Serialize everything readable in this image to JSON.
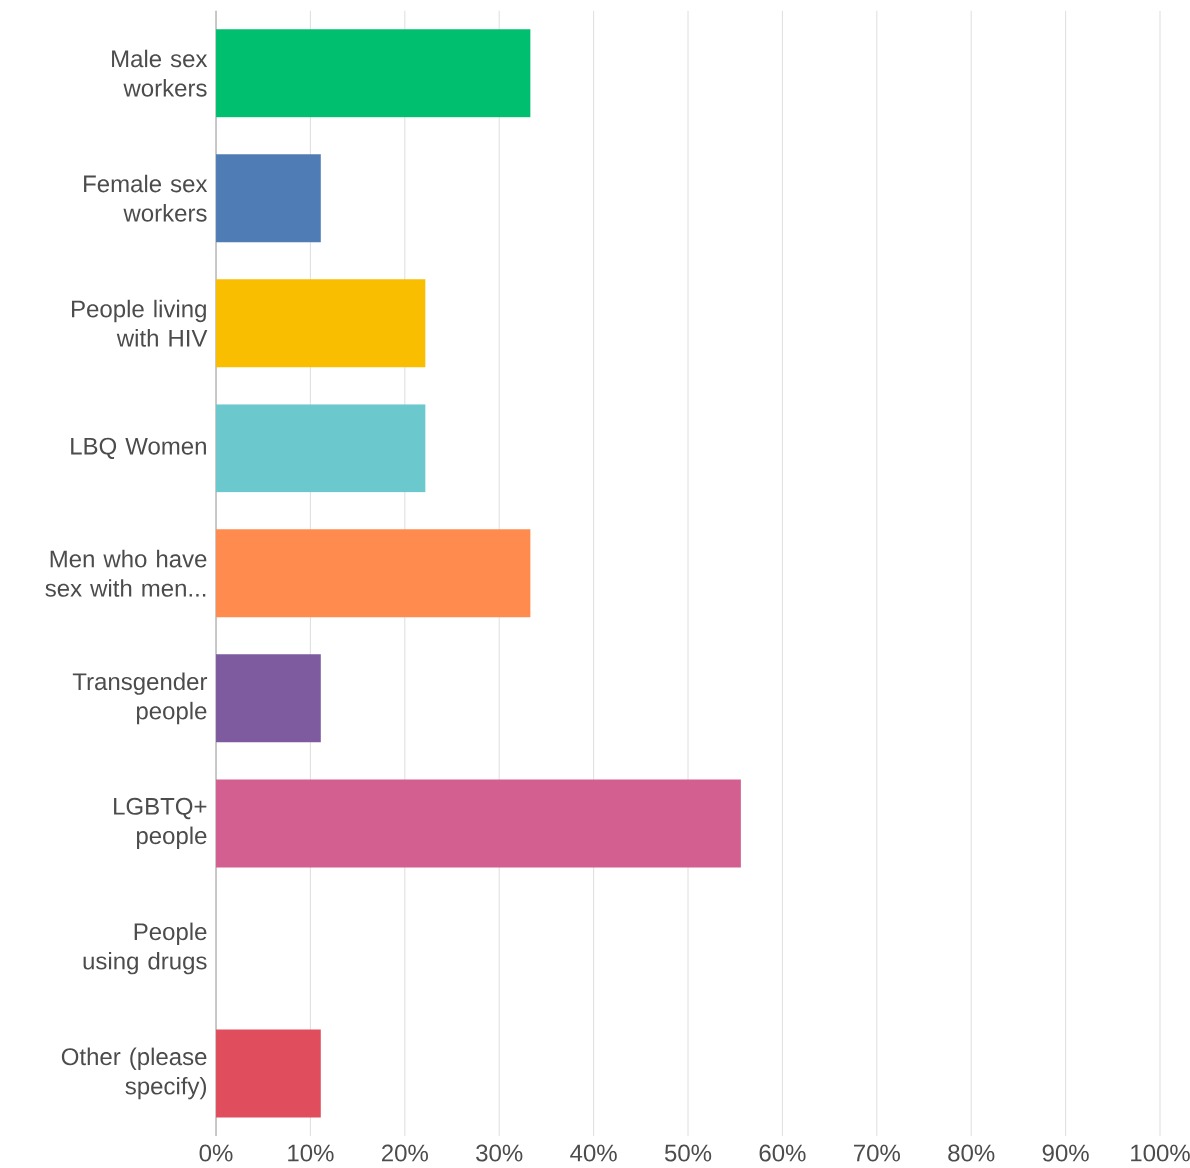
{
  "chart_data": {
    "type": "bar",
    "orientation": "horizontal",
    "categories": [
      "Male sex workers",
      "Female sex workers",
      "People living with HIV",
      "LBQ Women",
      "Men who have sex with men...",
      "Transgender people",
      "LGBTQ+ people",
      "People using drugs",
      "Other (please specify)"
    ],
    "values": [
      33.3,
      11.1,
      22.2,
      22.2,
      33.3,
      11.1,
      55.6,
      0,
      11.1
    ],
    "colors": [
      "#00bf6f",
      "#507cb6",
      "#f9be00",
      "#6bc8cd",
      "#ff8b4f",
      "#7d5b9e",
      "#d25f90",
      "#aaaaaa",
      "#e04e5e"
    ],
    "xlim": [
      0,
      100
    ],
    "xticks": [
      {
        "value": 0,
        "label": "0%"
      },
      {
        "value": 10,
        "label": "10%"
      },
      {
        "value": 20,
        "label": "20%"
      },
      {
        "value": 30,
        "label": "30%"
      },
      {
        "value": 40,
        "label": "40%"
      },
      {
        "value": 50,
        "label": "50%"
      },
      {
        "value": 60,
        "label": "60%"
      },
      {
        "value": 70,
        "label": "70%"
      },
      {
        "value": 80,
        "label": "80%"
      },
      {
        "value": 90,
        "label": "90%"
      },
      {
        "value": 100,
        "label": "100%"
      }
    ],
    "grid": "x"
  }
}
